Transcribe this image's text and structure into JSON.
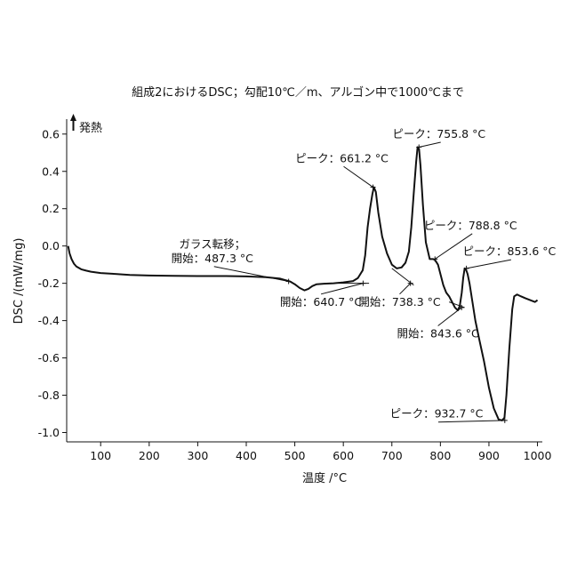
{
  "chart_data": {
    "type": "line",
    "title": "組成2におけるDSC；勾配10℃／m、アルゴン中で1000℃まで",
    "xlabel": "温度 /°C",
    "ylabel": "DSC /(mW/mg)",
    "exo_label": "発熱",
    "xlim": [
      30,
      1010
    ],
    "ylim": [
      -1.05,
      0.68
    ],
    "x_ticks": [
      100,
      200,
      300,
      400,
      500,
      600,
      700,
      800,
      900,
      1000
    ],
    "y_ticks": [
      0.6,
      0.4,
      0.2,
      0.0,
      -0.2,
      -0.4,
      -0.6,
      -0.8,
      -1.0
    ],
    "x_tick_labels": [
      "100",
      "200",
      "300",
      "400",
      "500",
      "600",
      "700",
      "800",
      "900",
      "1000"
    ],
    "y_tick_labels": [
      "0.6",
      "0.4",
      "0.2",
      "0.0",
      "-0.2",
      "-0.4",
      "-0.6",
      "-0.8",
      "-1.0"
    ],
    "grid": false,
    "series": [
      {
        "x": [
          33,
          36,
          40,
          45,
          50,
          60,
          70,
          80,
          100,
          130,
          160,
          200,
          250,
          300,
          350,
          400,
          440,
          470,
          490,
          500,
          510,
          520,
          528,
          536,
          545,
          560,
          580,
          600,
          620,
          630,
          640,
          645,
          650,
          655,
          660,
          663,
          667,
          672,
          680,
          690,
          700,
          710,
          720,
          728,
          735,
          740,
          745,
          750,
          753,
          756,
          759,
          764,
          770,
          778,
          785,
          789,
          795,
          800,
          806,
          812,
          818,
          824,
          830,
          836,
          840,
          844,
          847,
          850,
          853,
          856,
          860,
          866,
          872,
          880,
          890,
          900,
          910,
          920,
          927,
          932,
          936,
          942,
          948,
          952,
          958,
          966,
          975,
          985,
          995,
          1000
        ],
        "y": [
          0.0,
          -0.04,
          -0.07,
          -0.095,
          -0.11,
          -0.125,
          -0.132,
          -0.138,
          -0.145,
          -0.15,
          -0.155,
          -0.158,
          -0.16,
          -0.161,
          -0.161,
          -0.163,
          -0.167,
          -0.175,
          -0.19,
          -0.205,
          -0.225,
          -0.238,
          -0.23,
          -0.215,
          -0.205,
          -0.202,
          -0.2,
          -0.195,
          -0.188,
          -0.172,
          -0.13,
          -0.05,
          0.1,
          0.2,
          0.28,
          0.315,
          0.29,
          0.18,
          0.05,
          -0.04,
          -0.1,
          -0.12,
          -0.115,
          -0.09,
          -0.03,
          0.1,
          0.28,
          0.45,
          0.53,
          0.52,
          0.43,
          0.22,
          0.02,
          -0.07,
          -0.07,
          -0.075,
          -0.1,
          -0.15,
          -0.21,
          -0.25,
          -0.27,
          -0.3,
          -0.33,
          -0.345,
          -0.32,
          -0.25,
          -0.17,
          -0.12,
          -0.128,
          -0.15,
          -0.2,
          -0.3,
          -0.4,
          -0.5,
          -0.62,
          -0.76,
          -0.87,
          -0.93,
          -0.935,
          -0.92,
          -0.8,
          -0.55,
          -0.34,
          -0.27,
          -0.26,
          -0.27,
          -0.28,
          -0.29,
          -0.3,
          -0.29
        ]
      }
    ],
    "baselines": [
      {
        "x": [
          590,
          653
        ],
        "y": [
          -0.2,
          -0.2
        ]
      },
      {
        "x": [
          700,
          745
        ],
        "y": [
          -0.12,
          -0.21
        ]
      },
      {
        "x": [
          818,
          850
        ],
        "y": [
          -0.3,
          -0.33
        ]
      }
    ],
    "annotations": [
      {
        "lines": [
          "ガラス転移；",
          "開始：487.3 °C"
        ],
        "x": 487.3,
        "y": -0.19,
        "label_x": 330,
        "label_y": -0.01
      },
      {
        "lines": [
          "ピーク：661.2 °C"
        ],
        "x": 661.2,
        "y": 0.315,
        "label_x": 597,
        "label_y": 0.45
      },
      {
        "lines": [
          "ピーク：755.8 °C"
        ],
        "x": 755.8,
        "y": 0.53,
        "label_x": 797,
        "label_y": 0.58
      },
      {
        "lines": [
          "ピーク：788.8 °C"
        ],
        "x": 788.8,
        "y": -0.07,
        "label_x": 862,
        "label_y": 0.09
      },
      {
        "lines": [
          "ピーク：853.6 °C"
        ],
        "x": 853.6,
        "y": -0.12,
        "label_x": 942,
        "label_y": -0.05
      },
      {
        "lines": [
          "開始：640.7 °C"
        ],
        "x": 640.7,
        "y": -0.2,
        "label_x": 554,
        "label_y": -0.32
      },
      {
        "lines": [
          "開始：738.3 °C"
        ],
        "x": 738.3,
        "y": -0.2,
        "label_x": 716,
        "label_y": -0.32
      },
      {
        "lines": [
          "開始：843.6 °C"
        ],
        "x": 843.6,
        "y": -0.33,
        "label_x": 795,
        "label_y": -0.49
      },
      {
        "lines": [
          "ピーク：932.7 °C"
        ],
        "x": 932.7,
        "y": -0.935,
        "label_x": 792,
        "label_y": -0.92
      }
    ]
  }
}
